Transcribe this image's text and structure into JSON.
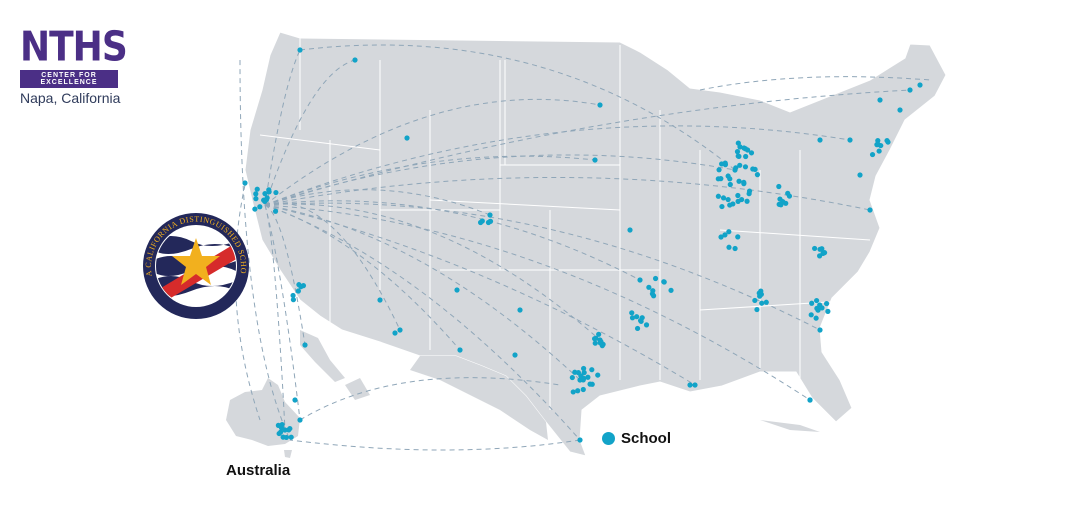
{
  "logo": {
    "main": "NTHS",
    "sub": "CENTER FOR EXCELLENCE",
    "location": "Napa, California"
  },
  "seal": {
    "text": "A CALIFORNIA DISTINGUISHED SCHOOL",
    "colors": {
      "ring": "#23285a",
      "star": "#f2b01e",
      "stripe": "#d62b2b"
    }
  },
  "map": {
    "land_color": "#d5d8dc",
    "dot_color": "#12a3c8",
    "route_color": "#8fa6b8",
    "region_label": "Australia"
  },
  "legend": {
    "label": "School",
    "icon": "circle-dot-icon"
  }
}
